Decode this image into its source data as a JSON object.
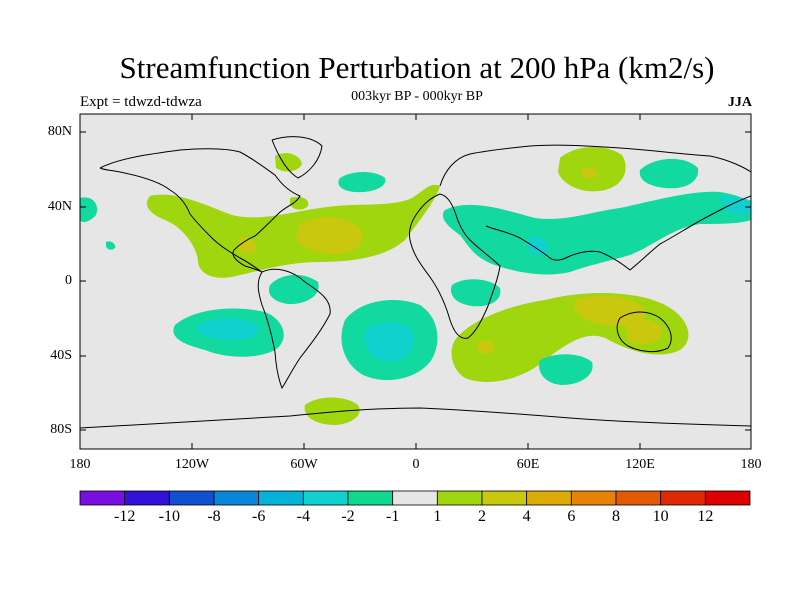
{
  "header": {
    "title": "Streamfunction Perturbation at 200 hPa (km2/s)",
    "subtitle": "003kyr BP - 000kyr BP",
    "experiment": "Expt = tdwzd-tdwza",
    "season": "JJA"
  },
  "axes": {
    "y_ticks": [
      "80N",
      "40N",
      "0",
      "40S",
      "80S"
    ],
    "x_ticks": [
      "180",
      "120W",
      "60W",
      "0",
      "60E",
      "120E",
      "180"
    ]
  },
  "colorbar": {
    "labels": [
      "-12",
      "-10",
      "-8",
      "-6",
      "-4",
      "-2",
      "-1",
      "1",
      "2",
      "4",
      "6",
      "8",
      "10",
      "12"
    ],
    "colors": [
      "#7a0ee0",
      "#3212d6",
      "#1150cf",
      "#0a85d8",
      "#05b2d8",
      "#11d1cf",
      "#10d98f",
      "#e6e6e6",
      "#9fd60d",
      "#c9c80e",
      "#dcac05",
      "#e68205",
      "#e35a05",
      "#dd2a05",
      "#dd0000"
    ]
  },
  "map": {
    "background_color": "#e6e6e6",
    "projection": "cylindrical-equidistant",
    "lon_range": [
      -180,
      180
    ],
    "lat_range": [
      -90,
      90
    ]
  }
}
